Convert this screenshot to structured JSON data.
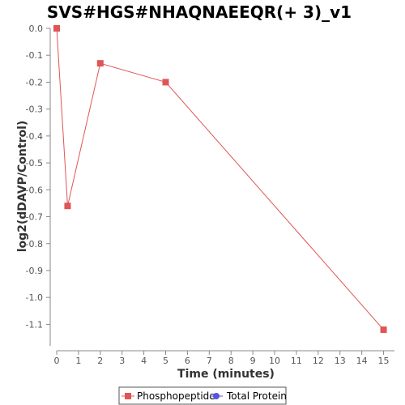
{
  "chart_data": {
    "type": "line",
    "title": "SVS#HGS#NHAQNAEEQR(+ 3)_v1",
    "xlabel": "Time (minutes)",
    "ylabel": "log2(dDAVP/Control)",
    "xlim": [
      0,
      15.5
    ],
    "ylim": [
      -1.18,
      0
    ],
    "x_ticks": [
      0,
      1,
      2,
      3,
      4,
      5,
      6,
      7,
      8,
      9,
      10,
      11,
      12,
      13,
      14,
      15
    ],
    "y_ticks": [
      0.0,
      -0.1,
      -0.2,
      -0.3,
      -0.4,
      -0.5,
      -0.6,
      -0.7,
      -0.8,
      -0.9,
      -1.0,
      -1.1
    ],
    "y_tick_labels": [
      "0.0",
      "-0.1",
      "-0.2",
      "-0.3",
      "-0.4",
      "-0.5",
      "-0.6",
      "-0.7",
      "-0.8",
      "-0.9",
      "-1.0",
      "-1.1"
    ],
    "grid": false,
    "legend_position": "bottom-center",
    "series": [
      {
        "name": "Phosphopeptide",
        "color": "#e05555",
        "marker": "square",
        "x": [
          0,
          0.5,
          2,
          5,
          15
        ],
        "y": [
          0.0,
          -0.66,
          -0.13,
          -0.2,
          -1.12
        ]
      },
      {
        "name": "Total Protein",
        "color": "#5555e0",
        "marker": "circle",
        "x": [],
        "y": []
      }
    ]
  }
}
